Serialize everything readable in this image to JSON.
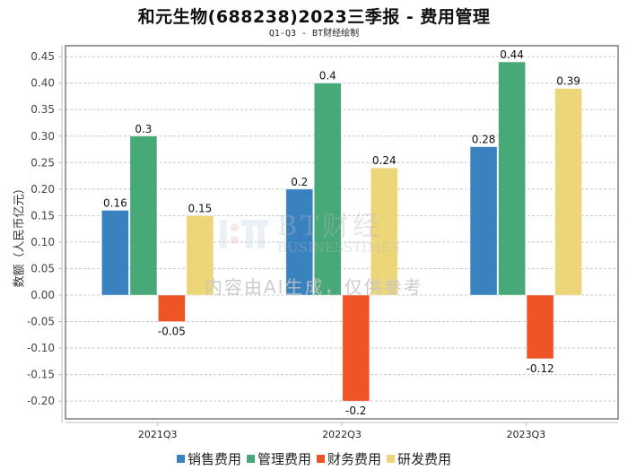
{
  "header": {
    "title": "和元生物(688238)2023三季报 - 费用管理",
    "subtitle": "Q1-Q3 - BT财经绘制"
  },
  "watermark": {
    "brand_cn": "BT财经",
    "brand_en": "BUSINESSTIMES",
    "notice": "内容由AI生成，仅供参考"
  },
  "chart_data": {
    "type": "bar",
    "title": "和元生物(688238)2023三季报 - 费用管理",
    "subtitle": "Q1-Q3 - BT财经绘制",
    "xlabel": "",
    "ylabel": "数额（人民币亿元）",
    "ylim": [
      -0.225,
      0.47
    ],
    "yticks": [
      0.45,
      0.4,
      0.35,
      0.3,
      0.25,
      0.2,
      0.15,
      0.1,
      0.05,
      0.0,
      -0.05,
      -0.1,
      -0.15,
      -0.2
    ],
    "ytick_labels": [
      "0.45",
      "0.40",
      "0.35",
      "0.30",
      "0.25",
      "0.20",
      "0.15",
      "0.10",
      "0.05",
      "0.00",
      "-0.05",
      "-0.10",
      "-0.15",
      "-0.20"
    ],
    "grid": true,
    "legend_position": "bottom-center",
    "categories": [
      "2021Q3",
      "2022Q3",
      "2023Q3"
    ],
    "series": [
      {
        "name": "销售费用",
        "color": "#3a81bf",
        "values": [
          0.16,
          0.2,
          0.28
        ],
        "labels": [
          "0.16",
          "0.2",
          "0.28"
        ]
      },
      {
        "name": "管理费用",
        "color": "#47a878",
        "values": [
          0.3,
          0.4,
          0.44
        ],
        "labels": [
          "0.3",
          "0.4",
          "0.44"
        ]
      },
      {
        "name": "财务费用",
        "color": "#ef5427",
        "values": [
          -0.05,
          -0.2,
          -0.12
        ],
        "labels": [
          "-0.05",
          "-0.2",
          "-0.12"
        ]
      },
      {
        "name": "研发费用",
        "color": "#edd67a",
        "values": [
          0.15,
          0.24,
          0.39
        ],
        "labels": [
          "0.15",
          "0.24",
          "0.39"
        ]
      }
    ]
  }
}
